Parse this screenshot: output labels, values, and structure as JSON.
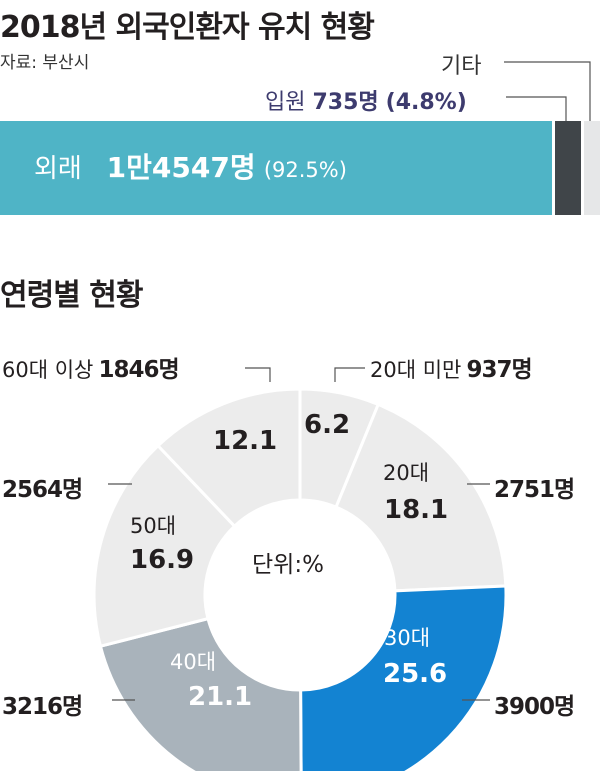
{
  "title_top": "2018년 외국인환자 유치 현황",
  "source": "자료: 부산시",
  "title_bottom": "연령별 현황",
  "unit_label": "단위:%",
  "colors": {
    "outpatient": "#4fb4c6",
    "inpatient": "#404549",
    "other": "#e6e7e8",
    "age_20s": "#ececec",
    "age_30s": "#1383d2",
    "age_40s": "#a9b3bb"
  },
  "chart_data": [
    {
      "type": "bar",
      "stacked": true,
      "orientation": "horizontal",
      "title": "2018년 외국인환자 유치 현황",
      "segments": [
        {
          "name": "외래",
          "count_label": "1만4547명",
          "percent_label": "(92.5%)",
          "percent": 92.5
        },
        {
          "name": "입원",
          "count_label": "735명",
          "percent_label": "(4.8%)",
          "percent": 4.8
        },
        {
          "name": "기타",
          "percent": 2.7
        }
      ]
    },
    {
      "type": "pie",
      "donut": true,
      "title": "연령별 현황",
      "unit": "단위:%",
      "slices": [
        {
          "key": "under20",
          "name": "20대 미만",
          "value": 6.2,
          "value_label": "6.2",
          "count": "937명"
        },
        {
          "key": "20s",
          "name": "20대",
          "value": 18.1,
          "value_label": "18.1",
          "count": "2751명"
        },
        {
          "key": "30s",
          "name": "30대",
          "value": 25.6,
          "value_label": "25.6",
          "count": "3900명"
        },
        {
          "key": "40s",
          "name": "40대",
          "value": 21.1,
          "value_label": "21.1",
          "count": "3216명"
        },
        {
          "key": "50s",
          "name": "50대",
          "value": 16.9,
          "value_label": "16.9",
          "count": "2564명"
        },
        {
          "key": "60plus",
          "name": "60대 이상",
          "value": 12.1,
          "value_label": "12.1",
          "count": "1846명"
        }
      ]
    }
  ]
}
